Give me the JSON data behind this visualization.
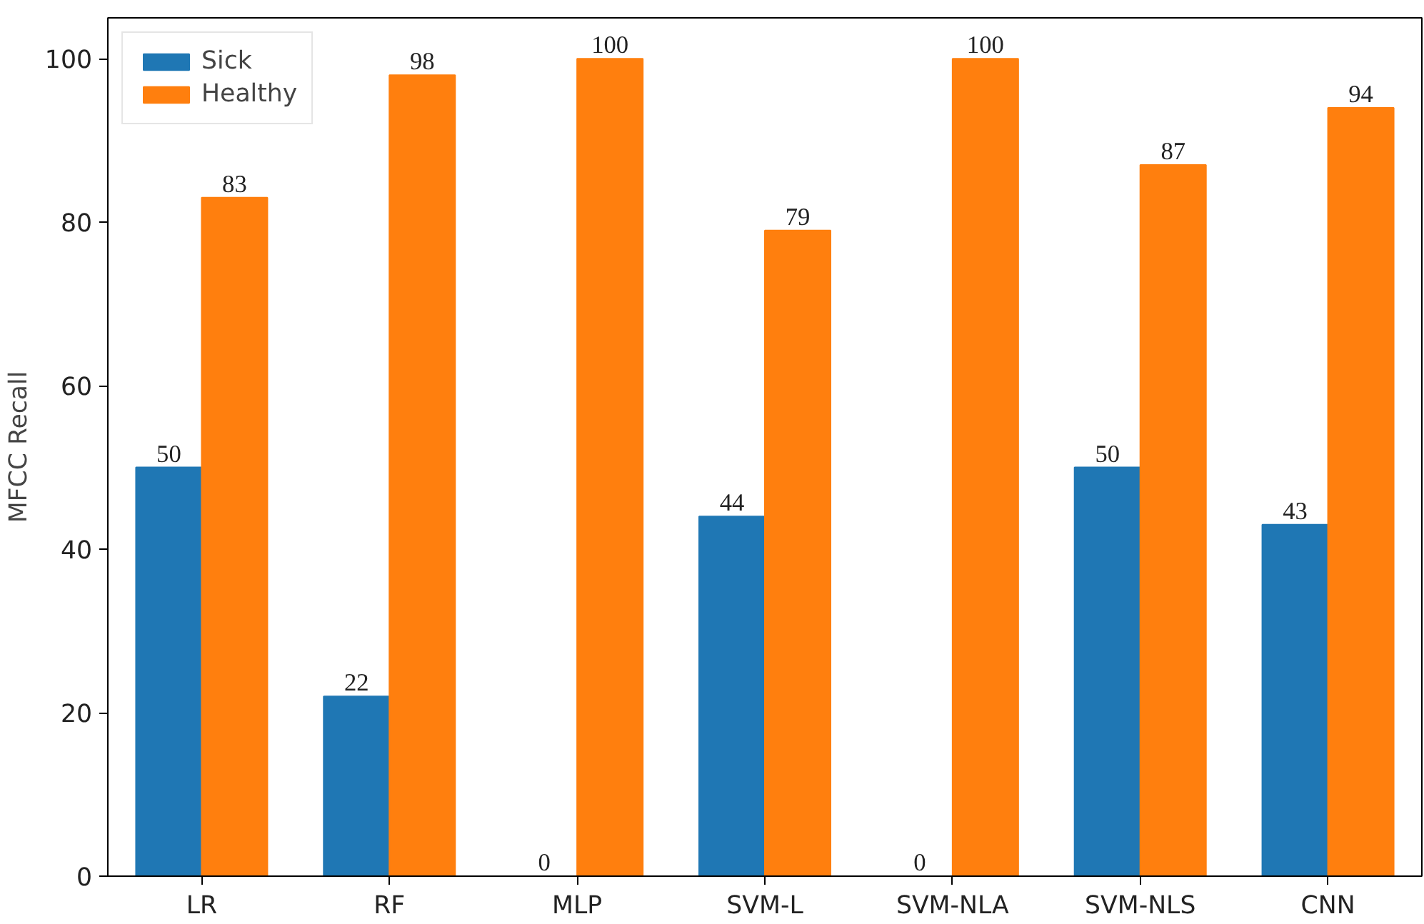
{
  "chart_data": {
    "type": "bar",
    "ylabel": "MFCC Recall",
    "categories": [
      "LR",
      "RF",
      "MLP",
      "SVM-L",
      "SVM-NLA",
      "SVM-NLS",
      "CNN"
    ],
    "series": [
      {
        "name": "Sick",
        "color": "#1f77b4",
        "values": [
          50,
          22,
          0,
          44,
          0,
          50,
          43
        ]
      },
      {
        "name": "Healthy",
        "color": "#ff7f0e",
        "values": [
          83,
          98,
          100,
          79,
          100,
          87,
          94
        ]
      }
    ],
    "ylim": [
      0,
      105
    ],
    "yticks": [
      0,
      20,
      40,
      60,
      80,
      100
    ],
    "data_labels": true,
    "legend": "top left",
    "grid": false
  }
}
